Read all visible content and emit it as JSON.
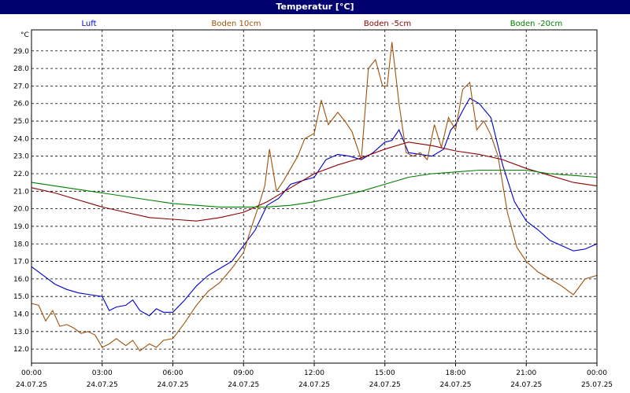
{
  "title": "Temperatur [°C]",
  "chart_data": {
    "type": "line",
    "title": "Temperatur [°C]",
    "ylabel": "°C",
    "ylim": [
      11.2,
      30.2
    ],
    "yticks": [
      12.0,
      13.0,
      14.0,
      15.0,
      16.0,
      17.0,
      18.0,
      19.0,
      20.0,
      21.0,
      22.0,
      23.0,
      24.0,
      25.0,
      26.0,
      27.0,
      28.0,
      29.0
    ],
    "xlim": [
      0,
      24
    ],
    "xticks": [
      {
        "hours": 0,
        "time": "00:00",
        "date": "24.07.25"
      },
      {
        "hours": 3,
        "time": "03:00",
        "date": "24.07.25"
      },
      {
        "hours": 6,
        "time": "06:00",
        "date": "24.07.25"
      },
      {
        "hours": 9,
        "time": "09:00",
        "date": "24.07.25"
      },
      {
        "hours": 12,
        "time": "12:00",
        "date": "24.07.25"
      },
      {
        "hours": 15,
        "time": "15:00",
        "date": "24.07.25"
      },
      {
        "hours": 18,
        "time": "18:00",
        "date": "24.07.25"
      },
      {
        "hours": 21,
        "time": "21:00",
        "date": "24.07.25"
      },
      {
        "hours": 24,
        "time": "00:00",
        "date": "25.07.25"
      }
    ],
    "grid": true,
    "series": [
      {
        "name": "Luft",
        "color": "#0000cc",
        "x": [
          0,
          0.5,
          1,
          1.5,
          2,
          2.5,
          3,
          3.3,
          3.6,
          4,
          4.3,
          4.6,
          5,
          5.3,
          5.6,
          6,
          6.5,
          7,
          7.5,
          8,
          8.5,
          9,
          9.5,
          10,
          10.5,
          11,
          11.5,
          12,
          12.5,
          13,
          13.5,
          14,
          14.5,
          15,
          15.3,
          15.6,
          16,
          16.5,
          17,
          17.5,
          17.8,
          18,
          18.3,
          18.6,
          19,
          19.5,
          20,
          20.5,
          21,
          21.5,
          22,
          22.5,
          23,
          23.5,
          24
        ],
        "values": [
          16.7,
          16.2,
          15.7,
          15.4,
          15.2,
          15.1,
          15.0,
          14.2,
          14.4,
          14.5,
          14.8,
          14.2,
          13.9,
          14.3,
          14.1,
          14.1,
          14.8,
          15.6,
          16.2,
          16.6,
          17.0,
          17.9,
          18.8,
          20.2,
          20.6,
          21.4,
          21.6,
          21.8,
          22.8,
          23.1,
          23.0,
          22.8,
          23.2,
          23.8,
          23.9,
          24.5,
          23.2,
          23.1,
          23.0,
          23.4,
          24.5,
          24.8,
          25.6,
          26.3,
          26.0,
          25.2,
          22.5,
          20.4,
          19.3,
          18.8,
          18.2,
          17.9,
          17.6,
          17.7,
          18.0
        ]
      },
      {
        "name": "Boden 10cm",
        "color": "#a0520a",
        "x": [
          0,
          0.3,
          0.6,
          0.9,
          1.2,
          1.5,
          1.8,
          2.1,
          2.4,
          2.7,
          3,
          3.3,
          3.6,
          4,
          4.3,
          4.6,
          5,
          5.3,
          5.6,
          6,
          6.5,
          7,
          7.5,
          8,
          8.5,
          9,
          9.3,
          9.6,
          9.9,
          10.1,
          10.4,
          10.7,
          11,
          11.3,
          11.6,
          12,
          12.3,
          12.6,
          13,
          13.3,
          13.6,
          14,
          14.3,
          14.6,
          14.9,
          15.1,
          15.3,
          15.6,
          15.9,
          16.2,
          16.5,
          16.8,
          17.1,
          17.4,
          17.7,
          18,
          18.3,
          18.6,
          18.9,
          19.2,
          19.5,
          19.8,
          20.2,
          20.6,
          21,
          21.5,
          22,
          22.5,
          23,
          23.5,
          24
        ],
        "values": [
          14.6,
          14.5,
          13.6,
          14.2,
          13.3,
          13.4,
          13.2,
          12.9,
          13.0,
          12.8,
          12.1,
          12.3,
          12.6,
          12.2,
          12.5,
          11.9,
          12.3,
          12.1,
          12.5,
          12.6,
          13.5,
          14.5,
          15.3,
          15.8,
          16.6,
          17.5,
          18.8,
          20.0,
          21.3,
          23.4,
          21.0,
          21.6,
          22.3,
          23.0,
          24.0,
          24.3,
          26.2,
          24.8,
          25.5,
          25.0,
          24.4,
          22.8,
          28.0,
          28.5,
          27.0,
          27.0,
          29.5,
          26.0,
          23.2,
          23.0,
          23.2,
          22.8,
          24.8,
          23.5,
          25.2,
          24.5,
          26.8,
          27.2,
          24.5,
          25.0,
          24.2,
          23.0,
          19.8,
          17.8,
          17.0,
          16.4,
          16.0,
          15.6,
          15.1,
          16.0,
          16.2
        ]
      },
      {
        "name": "Boden -5cm",
        "color": "#8b0000",
        "x": [
          0,
          1,
          2,
          3,
          4,
          5,
          6,
          7,
          8,
          9,
          10,
          11,
          12,
          13,
          14,
          15,
          16,
          17,
          18,
          19,
          20,
          21,
          22,
          23,
          24
        ],
        "values": [
          21.2,
          20.9,
          20.5,
          20.1,
          19.8,
          19.5,
          19.4,
          19.3,
          19.5,
          19.8,
          20.4,
          21.2,
          22.0,
          22.5,
          22.9,
          23.4,
          23.8,
          23.6,
          23.3,
          23.1,
          22.8,
          22.3,
          21.9,
          21.5,
          21.3
        ]
      },
      {
        "name": "Boden -20cm",
        "color": "#008000",
        "x": [
          0,
          1,
          2,
          3,
          4,
          5,
          6,
          7,
          8,
          9,
          10,
          11,
          12,
          13,
          14,
          15,
          16,
          17,
          18,
          19,
          20,
          21,
          22,
          23,
          24
        ],
        "values": [
          21.5,
          21.3,
          21.1,
          20.9,
          20.7,
          20.5,
          20.3,
          20.2,
          20.1,
          20.1,
          20.1,
          20.2,
          20.4,
          20.7,
          21.0,
          21.4,
          21.8,
          22.0,
          22.1,
          22.2,
          22.2,
          22.2,
          22.0,
          21.9,
          21.8
        ]
      }
    ]
  }
}
